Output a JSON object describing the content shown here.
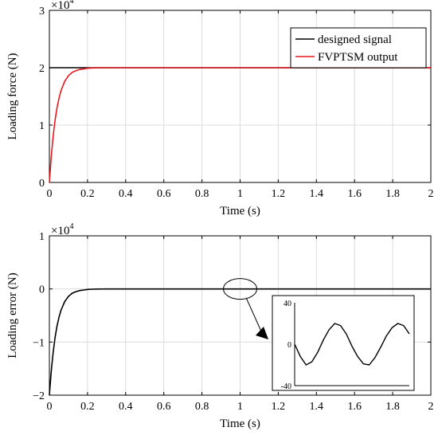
{
  "chart_data": [
    {
      "type": "line",
      "xlabel": "Time (s)",
      "ylabel": "Loading force (N)",
      "xlim": [
        0,
        2
      ],
      "ylim": [
        0,
        3
      ],
      "y_multiplier": {
        "base": "×10",
        "exponent": "4"
      },
      "x_ticks": [
        "0",
        "0.2",
        "0.4",
        "0.6",
        "0.8",
        "1",
        "1.2",
        "1.4",
        "1.6",
        "1.8",
        "2"
      ],
      "y_ticks": [
        "0",
        "1",
        "2",
        "3"
      ],
      "grid": true,
      "legend_position": "top-right",
      "series": [
        {
          "name": "designed signal",
          "color": "#000000",
          "x": [
            0,
            2
          ],
          "y": [
            2,
            2
          ]
        },
        {
          "name": "FVPTSM output",
          "color": "#e8191c",
          "x": [
            0,
            0.01,
            0.02,
            0.03,
            0.04,
            0.05,
            0.06,
            0.08,
            0.1,
            0.12,
            0.14,
            0.16,
            0.18,
            0.2,
            0.22,
            0.25,
            0.3,
            0.4,
            0.6,
            0.8,
            1,
            1.2,
            1.4,
            1.6,
            1.8,
            2
          ],
          "y": [
            0,
            0.46,
            0.81,
            1.09,
            1.3,
            1.46,
            1.59,
            1.76,
            1.86,
            1.92,
            1.95,
            1.97,
            1.98,
            1.99,
            1.995,
            1.998,
            2,
            2,
            2,
            2,
            2,
            2,
            2,
            2,
            2,
            2
          ]
        }
      ]
    },
    {
      "type": "line",
      "xlabel": "Time (s)",
      "ylabel": "Loading error (N)",
      "xlim": [
        0,
        2
      ],
      "ylim": [
        -2,
        1
      ],
      "y_multiplier": {
        "base": "×10",
        "exponent": "4"
      },
      "x_ticks": [
        "0",
        "0.2",
        "0.4",
        "0.6",
        "0.8",
        "1",
        "1.2",
        "1.4",
        "1.6",
        "1.8",
        "2"
      ],
      "y_ticks": [
        "−2",
        "−1",
        "0",
        "1"
      ],
      "grid": true,
      "series": [
        {
          "color": "#000000",
          "x": [
            0,
            0.01,
            0.02,
            0.03,
            0.04,
            0.05,
            0.06,
            0.08,
            0.1,
            0.12,
            0.14,
            0.16,
            0.18,
            0.2,
            0.22,
            0.25,
            0.3,
            0.4,
            0.6,
            0.8,
            1,
            1.2,
            1.4,
            1.6,
            1.8,
            2
          ],
          "y": [
            -2,
            -1.54,
            -1.19,
            -0.91,
            -0.7,
            -0.54,
            -0.41,
            -0.24,
            -0.14,
            -0.08,
            -0.05,
            -0.03,
            -0.02,
            -0.01,
            -0.005,
            -0.002,
            0,
            0,
            0,
            0,
            0,
            0,
            0,
            0,
            0,
            0
          ]
        }
      ],
      "inset": {
        "ylim": [
          -40,
          40
        ],
        "y_ticks": [
          "40",
          "0",
          "-40"
        ],
        "series": {
          "color": "#000000",
          "x": [
            0,
            0.05,
            0.1,
            0.15,
            0.2,
            0.25,
            0.3,
            0.35,
            0.4,
            0.45,
            0.5,
            0.55,
            0.6,
            0.65,
            0.7,
            0.75,
            0.8,
            0.85,
            0.9,
            0.95,
            1
          ],
          "y": [
            0,
            -12,
            -20,
            -17,
            -8,
            4,
            14,
            20,
            18,
            10,
            -2,
            -12,
            -19,
            -20,
            -13,
            -3,
            8,
            16,
            20,
            18,
            10
          ]
        }
      }
    }
  ]
}
